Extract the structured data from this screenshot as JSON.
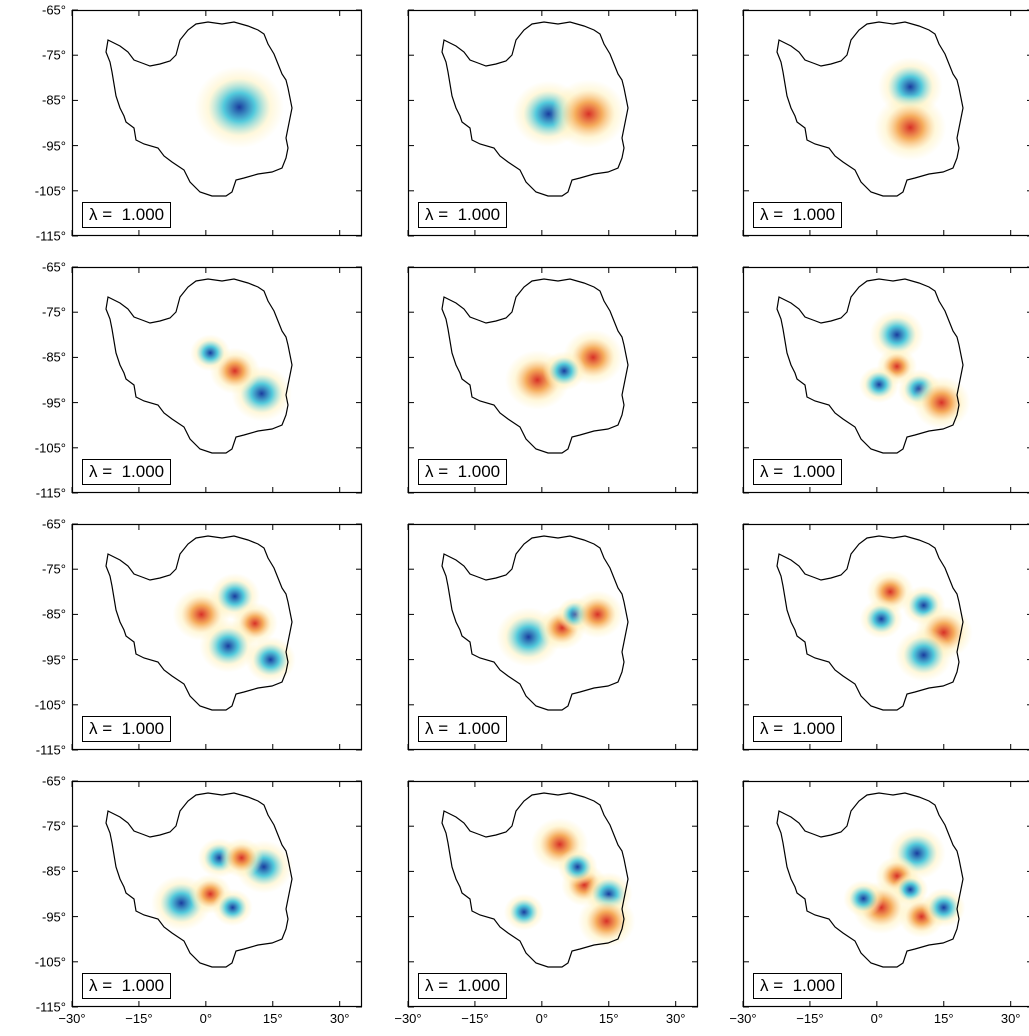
{
  "figure": {
    "lambda_label": "λ =  1.000",
    "y_tick_labels": [
      "-65°",
      "-75°",
      "-85°",
      "-95°",
      "-105°",
      "-115°"
    ],
    "x_tick_labels": [
      "−30°",
      "−15°",
      "0°",
      "15°",
      "30°"
    ],
    "colors": {
      "positive": "#d73027",
      "negative": "#1a3c9e",
      "mid_pos": "#f4a24a",
      "mid_neg": "#40c4d8",
      "weak": "#fff2bf",
      "frame": "#000000"
    },
    "panels": [
      {
        "lambda": "λ =  1.000",
        "blobs": [
          {
            "sign": -1,
            "lon": 7.5,
            "lat": -86.5,
            "r": 0.62
          }
        ]
      },
      {
        "lambda": "λ =  1.000",
        "blobs": [
          {
            "sign": -1,
            "lon": 1.5,
            "lat": -88,
            "r": 0.5
          },
          {
            "sign": 1,
            "lon": 10.5,
            "lat": -88,
            "r": 0.52
          }
        ]
      },
      {
        "lambda": "λ =  1.000",
        "blobs": [
          {
            "sign": -1,
            "lon": 7.5,
            "lat": -82,
            "r": 0.45
          },
          {
            "sign": 1,
            "lon": 7.5,
            "lat": -91,
            "r": 0.5
          }
        ]
      },
      {
        "lambda": "λ =  1.000",
        "blobs": [
          {
            "sign": -1,
            "lon": 12.5,
            "lat": -93,
            "r": 0.42
          },
          {
            "sign": 1,
            "lon": 6.5,
            "lat": -88,
            "r": 0.35
          },
          {
            "sign": -1,
            "lon": 1,
            "lat": -84,
            "r": 0.28
          }
        ]
      },
      {
        "lambda": "λ =  1.000",
        "blobs": [
          {
            "sign": 1,
            "lon": -1,
            "lat": -90,
            "r": 0.45
          },
          {
            "sign": 1,
            "lon": 11.5,
            "lat": -85,
            "r": 0.42
          },
          {
            "sign": -1,
            "lon": 5,
            "lat": -88,
            "r": 0.3
          }
        ]
      },
      {
        "lambda": "λ =  1.000",
        "blobs": [
          {
            "sign": -1,
            "lon": 4.5,
            "lat": -80,
            "r": 0.38
          },
          {
            "sign": 1,
            "lon": 4.5,
            "lat": -87,
            "r": 0.28
          },
          {
            "sign": -1,
            "lon": 0.5,
            "lat": -91,
            "r": 0.28
          },
          {
            "sign": -1,
            "lon": 9.5,
            "lat": -92,
            "r": 0.3
          },
          {
            "sign": 1,
            "lon": 14.5,
            "lat": -95,
            "r": 0.4
          }
        ]
      },
      {
        "lambda": "λ =  1.000",
        "blobs": [
          {
            "sign": 1,
            "lon": -1,
            "lat": -85,
            "r": 0.4
          },
          {
            "sign": -1,
            "lon": 6.5,
            "lat": -81,
            "r": 0.35
          },
          {
            "sign": 1,
            "lon": 11,
            "lat": -87,
            "r": 0.32
          },
          {
            "sign": -1,
            "lon": 5,
            "lat": -92,
            "r": 0.4
          },
          {
            "sign": -1,
            "lon": 14.5,
            "lat": -95,
            "r": 0.35
          }
        ]
      },
      {
        "lambda": "λ =  1.000",
        "blobs": [
          {
            "sign": -1,
            "lon": -3,
            "lat": -90,
            "r": 0.45
          },
          {
            "sign": 1,
            "lon": 4.5,
            "lat": -88,
            "r": 0.33
          },
          {
            "sign": -1,
            "lon": 7.5,
            "lat": -85,
            "r": 0.26
          },
          {
            "sign": 1,
            "lon": 12.5,
            "lat": -85,
            "r": 0.36
          }
        ]
      },
      {
        "lambda": "λ =  1.000",
        "blobs": [
          {
            "sign": 1,
            "lon": 3,
            "lat": -80,
            "r": 0.33
          },
          {
            "sign": -1,
            "lon": 1,
            "lat": -86,
            "r": 0.3
          },
          {
            "sign": -1,
            "lon": 10.5,
            "lat": -83,
            "r": 0.3
          },
          {
            "sign": 1,
            "lon": 15,
            "lat": -89,
            "r": 0.4
          },
          {
            "sign": -1,
            "lon": 10.5,
            "lat": -94,
            "r": 0.4
          }
        ]
      },
      {
        "lambda": "λ =  1.000",
        "blobs": [
          {
            "sign": -1,
            "lon": 3,
            "lat": -82,
            "r": 0.3
          },
          {
            "sign": -1,
            "lon": 13,
            "lat": -84,
            "r": 0.4
          },
          {
            "sign": 1,
            "lon": 8,
            "lat": -82,
            "r": 0.3
          },
          {
            "sign": -1,
            "lon": -5.5,
            "lat": -92,
            "r": 0.42
          },
          {
            "sign": 1,
            "lon": 1,
            "lat": -90,
            "r": 0.3
          },
          {
            "sign": -1,
            "lon": 6,
            "lat": -93,
            "r": 0.28
          }
        ]
      },
      {
        "lambda": "λ =  1.000",
        "blobs": [
          {
            "sign": 1,
            "lon": 4,
            "lat": -79,
            "r": 0.4
          },
          {
            "sign": 1,
            "lon": 9.5,
            "lat": -88,
            "r": 0.32
          },
          {
            "sign": -1,
            "lon": 15,
            "lat": -90,
            "r": 0.33
          },
          {
            "sign": 1,
            "lon": 14.5,
            "lat": -96,
            "r": 0.4
          },
          {
            "sign": -1,
            "lon": -4,
            "lat": -94,
            "r": 0.28
          },
          {
            "sign": -1,
            "lon": 8,
            "lat": -84,
            "r": 0.28
          }
        ]
      },
      {
        "lambda": "λ =  1.000",
        "blobs": [
          {
            "sign": -1,
            "lon": 9,
            "lat": -81,
            "r": 0.4
          },
          {
            "sign": 1,
            "lon": 4.5,
            "lat": -86,
            "r": 0.3
          },
          {
            "sign": -1,
            "lon": 7.5,
            "lat": -89,
            "r": 0.25
          },
          {
            "sign": 1,
            "lon": 1,
            "lat": -93,
            "r": 0.4
          },
          {
            "sign": 1,
            "lon": 10,
            "lat": -95,
            "r": 0.32
          },
          {
            "sign": -1,
            "lon": 15,
            "lat": -93,
            "r": 0.3
          },
          {
            "sign": -1,
            "lon": -3,
            "lat": -91,
            "r": 0.28
          }
        ]
      }
    ]
  }
}
